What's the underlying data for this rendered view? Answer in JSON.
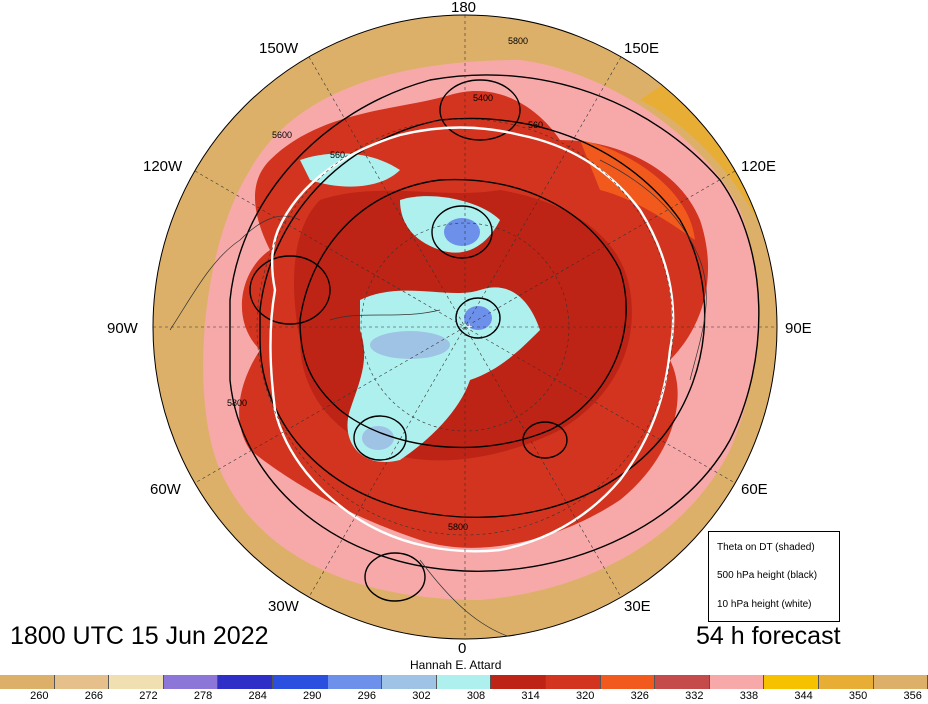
{
  "map": {
    "projection": "north polar stereographic",
    "longitude_labels": [
      "180",
      "150E",
      "120E",
      "90E",
      "60E",
      "30E",
      "0",
      "30W",
      "60W",
      "90W",
      "120W",
      "150W"
    ],
    "valid_time": "1800 UTC 15 Jun 2022",
    "forecast": "54 h forecast",
    "credit": "Hannah E. Attard",
    "legend": {
      "shaded": "Theta on DT (shaded)",
      "black": "500 hPa height (black)",
      "white": "10 hPa height (white)"
    },
    "contour_labels": [
      "5800",
      "5400",
      "560",
      "560",
      "5600",
      "5800",
      "5800"
    ]
  },
  "colorbar": {
    "colors": [
      "#ddb06a",
      "#e6c08a",
      "#f0dfb1",
      "#8c76d8",
      "#2f2fc7",
      "#2b50e0",
      "#6d90ea",
      "#9fc3e4",
      "#aef0ee",
      "#bd2416",
      "#d2341f",
      "#f15a1c",
      "#c54a4a",
      "#f7a9a9",
      "#f6c200",
      "#e8ad35",
      "#ddb06a"
    ],
    "ticks": [
      "260",
      "266",
      "272",
      "278",
      "284",
      "290",
      "296",
      "302",
      "308",
      "314",
      "320",
      "326",
      "332",
      "338",
      "344",
      "350",
      "356"
    ]
  }
}
